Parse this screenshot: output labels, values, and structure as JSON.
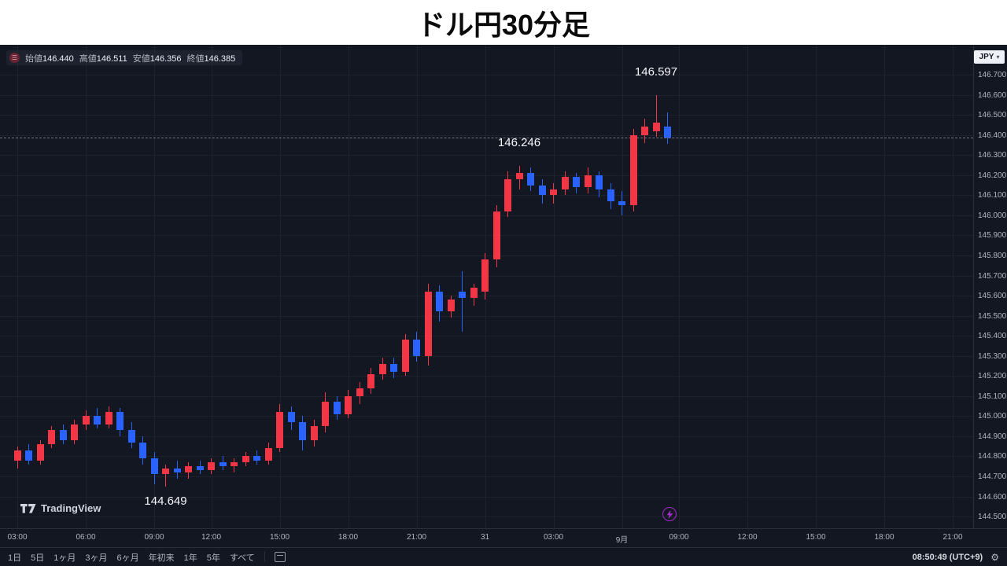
{
  "title": "ドル円30分足",
  "legend": {
    "items": [
      {
        "label": "始値",
        "value": "146.440"
      },
      {
        "label": "高値",
        "value": "146.511"
      },
      {
        "label": "安値",
        "value": "146.356"
      },
      {
        "label": "終値",
        "value": "146.385"
      }
    ]
  },
  "currency_selector": {
    "label": "JPY"
  },
  "logo": {
    "text": "TradingView"
  },
  "toolbar": {
    "ranges": [
      "1日",
      "5日",
      "1ヶ月",
      "3ヶ月",
      "6ヶ月",
      "年初来",
      "1年",
      "5年",
      "すべて"
    ],
    "clock": "08:50:49 (UTC+9)"
  },
  "chart_data": {
    "type": "candlestick",
    "title": "ドル円30分足",
    "interval_label": "30分足",
    "y_axis": {
      "unit": "JPY",
      "min": 144.5,
      "max": 146.7,
      "step": 0.1,
      "labels": [
        "146.700",
        "146.600",
        "146.500",
        "146.400",
        "146.300",
        "146.200",
        "146.100",
        "146.000",
        "145.900",
        "145.800",
        "145.700",
        "145.600",
        "145.500",
        "145.400",
        "145.300",
        "145.200",
        "145.100",
        "145.000",
        "144.900",
        "144.800",
        "144.700",
        "144.600",
        "144.500"
      ]
    },
    "x_ticks": [
      {
        "i": 0,
        "label": "03:00"
      },
      {
        "i": 6,
        "label": "06:00"
      },
      {
        "i": 12,
        "label": "09:00"
      },
      {
        "i": 17,
        "label": "12:00"
      },
      {
        "i": 23,
        "label": "15:00"
      },
      {
        "i": 29,
        "label": "18:00"
      },
      {
        "i": 35,
        "label": "21:00"
      },
      {
        "i": 41,
        "label": "31"
      },
      {
        "i": 47,
        "label": "03:00"
      },
      {
        "i": 53,
        "label": "9月"
      },
      {
        "i": 58,
        "label": "09:00"
      },
      {
        "i": 64,
        "label": "12:00"
      },
      {
        "i": 70,
        "label": "15:00"
      },
      {
        "i": 76,
        "label": "18:00"
      },
      {
        "i": 82,
        "label": "21:00"
      }
    ],
    "candles": [
      [
        144.78,
        144.85,
        144.74,
        144.83
      ],
      [
        144.83,
        144.86,
        144.76,
        144.78
      ],
      [
        144.78,
        144.88,
        144.76,
        144.86
      ],
      [
        144.86,
        144.95,
        144.84,
        144.93
      ],
      [
        144.93,
        144.96,
        144.86,
        144.88
      ],
      [
        144.88,
        144.98,
        144.86,
        144.96
      ],
      [
        144.96,
        145.03,
        144.93,
        145.0
      ],
      [
        145.0,
        145.04,
        144.94,
        144.96
      ],
      [
        144.96,
        145.05,
        144.94,
        145.02
      ],
      [
        145.02,
        145.04,
        144.9,
        144.93
      ],
      [
        144.93,
        144.97,
        144.84,
        144.87
      ],
      [
        144.87,
        144.9,
        144.76,
        144.79
      ],
      [
        144.79,
        144.82,
        144.66,
        144.71
      ],
      [
        144.71,
        144.76,
        144.649,
        144.74
      ],
      [
        144.74,
        144.78,
        144.69,
        144.72
      ],
      [
        144.72,
        144.77,
        144.69,
        144.75
      ],
      [
        144.75,
        144.78,
        144.71,
        144.73
      ],
      [
        144.73,
        144.79,
        144.71,
        144.77
      ],
      [
        144.77,
        144.8,
        144.73,
        144.75
      ],
      [
        144.75,
        144.79,
        144.72,
        144.77
      ],
      [
        144.77,
        144.82,
        144.75,
        144.8
      ],
      [
        144.8,
        144.83,
        144.76,
        144.78
      ],
      [
        144.78,
        144.87,
        144.76,
        144.84
      ],
      [
        144.84,
        145.06,
        144.82,
        145.02
      ],
      [
        145.02,
        145.05,
        144.93,
        144.97
      ],
      [
        144.97,
        145.0,
        144.83,
        144.88
      ],
      [
        144.88,
        144.98,
        144.85,
        144.95
      ],
      [
        144.95,
        145.12,
        144.92,
        145.07
      ],
      [
        145.07,
        145.1,
        144.98,
        145.01
      ],
      [
        145.01,
        145.13,
        144.99,
        145.1
      ],
      [
        145.1,
        145.17,
        145.06,
        145.14
      ],
      [
        145.14,
        145.24,
        145.11,
        145.21
      ],
      [
        145.21,
        145.29,
        145.18,
        145.26
      ],
      [
        145.26,
        145.29,
        145.19,
        145.22
      ],
      [
        145.22,
        145.41,
        145.2,
        145.38
      ],
      [
        145.38,
        145.42,
        145.27,
        145.3
      ],
      [
        145.3,
        145.66,
        145.25,
        145.62
      ],
      [
        145.62,
        145.65,
        145.47,
        145.52
      ],
      [
        145.52,
        145.6,
        145.49,
        145.58
      ],
      [
        145.62,
        145.72,
        145.42,
        145.59
      ],
      [
        145.59,
        145.66,
        145.55,
        145.64
      ],
      [
        145.62,
        145.81,
        145.58,
        145.78
      ],
      [
        145.78,
        146.05,
        145.74,
        146.02
      ],
      [
        146.02,
        146.22,
        145.99,
        146.18
      ],
      [
        146.18,
        146.246,
        146.13,
        146.21
      ],
      [
        146.21,
        146.24,
        146.12,
        146.15
      ],
      [
        146.15,
        146.18,
        146.06,
        146.1
      ],
      [
        146.1,
        146.16,
        146.06,
        146.13
      ],
      [
        146.13,
        146.22,
        146.1,
        146.19
      ],
      [
        146.19,
        146.21,
        146.11,
        146.14
      ],
      [
        146.14,
        146.24,
        146.11,
        146.2
      ],
      [
        146.2,
        146.22,
        146.09,
        146.13
      ],
      [
        146.13,
        146.16,
        146.03,
        146.07
      ],
      [
        146.07,
        146.12,
        146.0,
        146.05
      ],
      [
        146.05,
        146.43,
        146.02,
        146.4
      ],
      [
        146.4,
        146.48,
        146.36,
        146.44
      ],
      [
        146.42,
        146.597,
        146.39,
        146.46
      ],
      [
        146.44,
        146.511,
        146.356,
        146.385
      ]
    ],
    "last_close": 146.385,
    "annotations": [
      {
        "text": "144.649",
        "candle": 13,
        "price": 144.649,
        "position": "below"
      },
      {
        "text": "146.246",
        "candle": 44,
        "price": 146.246,
        "position": "above"
      },
      {
        "text": "146.597",
        "candle": 56,
        "price": 146.597,
        "position": "above"
      }
    ],
    "colors": {
      "up": "#f23645",
      "down": "#2962ff",
      "background": "#131722",
      "grid": "#1e222d",
      "axis_text": "#b2b5be"
    }
  }
}
